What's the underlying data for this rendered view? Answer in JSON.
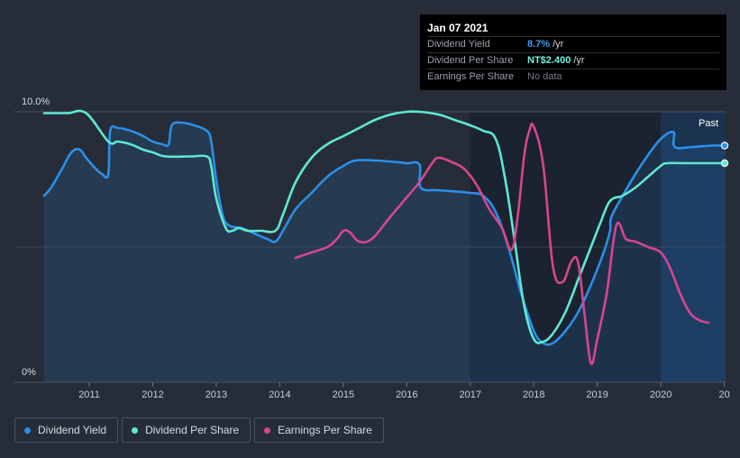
{
  "tooltip": {
    "date": "Jan 07 2021",
    "rows": [
      {
        "label": "Dividend Yield",
        "value": "8.7%",
        "unit": "/yr"
      },
      {
        "label": "Dividend Per Share",
        "value": "NT$2.400",
        "unit": "/yr"
      },
      {
        "label": "Earnings Per Share",
        "value": "No data",
        "unit": ""
      }
    ]
  },
  "colors": {
    "background": "#262d39",
    "dividend_yield": "#2b8fe8",
    "dividend_per_share": "#5fe7d3",
    "earnings_per_share": "#d6468f",
    "past_band": "#1b2230",
    "future_band": "#1c3350"
  },
  "legend": [
    {
      "label": "Dividend Yield",
      "color": "#2b8fe8"
    },
    {
      "label": "Dividend Per Share",
      "color": "#5fe7d3"
    },
    {
      "label": "Earnings Per Share",
      "color": "#d6468f"
    }
  ],
  "chart_data": {
    "type": "line",
    "title": "",
    "xlabel": "",
    "ylabel": "",
    "x_ticks": [
      "2011",
      "2012",
      "2013",
      "2014",
      "2015",
      "2016",
      "2017",
      "2018",
      "2019",
      "2020",
      "2021"
    ],
    "x_tick_labels": [
      "2011",
      "2012",
      "2013",
      "2014",
      "2015",
      "2016",
      "2017",
      "2018",
      "2019",
      "2020",
      "20"
    ],
    "xlim": [
      2010.29,
      2021.02
    ],
    "y_tick_labels": [
      "10.0%",
      "0%"
    ],
    "ylim": [
      0,
      10
    ],
    "past_label": "Past",
    "past_band_start": 2020.0,
    "future_band_start": 2020.0,
    "series": [
      {
        "name": "Dividend Yield",
        "x": [
          2010.29,
          2010.4,
          2010.55,
          2010.72,
          2010.85,
          2010.95,
          2011.1,
          2011.2,
          2011.3,
          2011.33,
          2011.45,
          2011.65,
          2011.85,
          2012.0,
          2012.15,
          2012.25,
          2012.3,
          2012.45,
          2012.65,
          2012.85,
          2012.92,
          2013.0,
          2013.1,
          2013.2,
          2013.4,
          2013.6,
          2013.8,
          2013.93,
          2014.05,
          2014.25,
          2014.5,
          2014.75,
          2015.0,
          2015.2,
          2015.5,
          2015.8,
          2016.0,
          2016.2,
          2016.22,
          2016.5,
          2016.8,
          2017.0,
          2017.2,
          2017.4,
          2017.6,
          2017.8,
          2018.0,
          2018.15,
          2018.3,
          2018.5,
          2018.7,
          2018.9,
          2019.1,
          2019.2,
          2019.22,
          2019.4,
          2019.6,
          2019.8,
          2020.0,
          2020.2,
          2020.22,
          2020.5,
          2020.8,
          2021.02
        ],
        "values": [
          6.9,
          7.2,
          7.8,
          8.5,
          8.6,
          8.3,
          7.9,
          7.7,
          7.7,
          9.3,
          9.4,
          9.3,
          9.1,
          8.9,
          8.8,
          8.8,
          9.5,
          9.6,
          9.5,
          9.3,
          8.9,
          7.5,
          6.2,
          5.8,
          5.7,
          5.5,
          5.3,
          5.2,
          5.6,
          6.4,
          7.0,
          7.6,
          8.0,
          8.2,
          8.2,
          8.15,
          8.1,
          8.05,
          7.2,
          7.1,
          7.05,
          7.0,
          6.9,
          6.3,
          5.0,
          3.3,
          1.9,
          1.45,
          1.45,
          1.9,
          2.6,
          3.6,
          4.8,
          5.6,
          6.1,
          6.9,
          7.7,
          8.4,
          9.0,
          9.25,
          8.7,
          8.7,
          8.75,
          8.75
        ]
      },
      {
        "name": "Dividend Per Share",
        "x": [
          2010.29,
          2010.65,
          2010.95,
          2011.3,
          2011.45,
          2011.65,
          2011.85,
          2012.0,
          2012.2,
          2012.6,
          2012.85,
          2012.92,
          2013.0,
          2013.15,
          2013.25,
          2013.35,
          2013.5,
          2013.7,
          2013.93,
          2014.05,
          2014.25,
          2014.5,
          2014.75,
          2015.0,
          2015.25,
          2015.5,
          2015.75,
          2016.0,
          2016.2,
          2016.5,
          2016.75,
          2017.0,
          2017.2,
          2017.4,
          2017.55,
          2017.7,
          2017.85,
          2018.0,
          2018.15,
          2018.3,
          2018.5,
          2018.7,
          2018.9,
          2019.05,
          2019.2,
          2019.4,
          2019.6,
          2019.8,
          2020.0,
          2020.1,
          2020.4,
          2020.8,
          2021.02
        ],
        "values": [
          9.95,
          9.95,
          9.95,
          8.9,
          8.9,
          8.8,
          8.6,
          8.5,
          8.35,
          8.35,
          8.35,
          8.0,
          6.8,
          5.7,
          5.6,
          5.7,
          5.6,
          5.6,
          5.6,
          6.2,
          7.4,
          8.3,
          8.8,
          9.1,
          9.4,
          9.7,
          9.9,
          10.0,
          10.0,
          9.9,
          9.7,
          9.5,
          9.3,
          9.0,
          7.5,
          5.2,
          2.8,
          1.6,
          1.5,
          1.8,
          2.6,
          3.8,
          5.0,
          5.9,
          6.7,
          6.9,
          7.2,
          7.6,
          8.0,
          8.1,
          8.1,
          8.1,
          8.1
        ]
      },
      {
        "name": "Earnings Per Share",
        "x": [
          2014.25,
          2014.5,
          2014.75,
          2014.9,
          2015.0,
          2015.1,
          2015.25,
          2015.45,
          2015.7,
          2015.95,
          2016.2,
          2016.4,
          2016.5,
          2016.7,
          2016.9,
          2017.1,
          2017.3,
          2017.5,
          2017.65,
          2017.75,
          2017.85,
          2017.93,
          2018.0,
          2018.15,
          2018.3,
          2018.45,
          2018.6,
          2018.7,
          2018.8,
          2018.9,
          2019.0,
          2019.15,
          2019.3,
          2019.45,
          2019.6,
          2019.8,
          2020.0,
          2020.15,
          2020.3,
          2020.45,
          2020.6,
          2020.75
        ],
        "values": [
          4.6,
          4.8,
          5.0,
          5.3,
          5.6,
          5.55,
          5.2,
          5.3,
          6.0,
          6.7,
          7.4,
          8.1,
          8.3,
          8.15,
          7.9,
          7.3,
          6.4,
          5.7,
          4.9,
          6.2,
          8.4,
          9.3,
          9.45,
          8.0,
          4.3,
          3.7,
          4.5,
          4.4,
          2.5,
          0.7,
          1.6,
          3.3,
          5.8,
          5.3,
          5.2,
          5.0,
          4.8,
          4.2,
          3.3,
          2.6,
          2.3,
          2.2
        ]
      }
    ]
  }
}
